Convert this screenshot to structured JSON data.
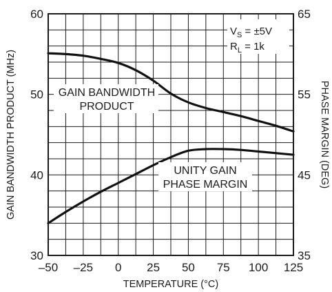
{
  "chart_data": {
    "type": "line",
    "xlabel": "TEMPERATURE (°C)",
    "ylabel_left": "GAIN BANDWIDTH PRODUCT (MHz)",
    "ylabel_right": "PHASE MARGIN (DEG)",
    "xlim": [
      -50,
      125
    ],
    "ylim_left": [
      30,
      60
    ],
    "ylim_right": [
      35,
      65
    ],
    "x_ticks": [
      "–50",
      "–25",
      "0",
      "25",
      "50",
      "75",
      "100",
      "125"
    ],
    "y_left_ticks": [
      "30",
      "40",
      "50",
      "60"
    ],
    "y_right_ticks": [
      "35",
      "45",
      "55",
      "65"
    ],
    "grid": true,
    "conditions": {
      "vs_main": "V",
      "vs_sub": "S",
      "vs_rest": " = ±5V",
      "rl_main": "R",
      "rl_sub": "L",
      "rl_rest": " = 1k"
    },
    "series": [
      {
        "name": "GAIN BANDWIDTH PRODUCT",
        "label_lines": [
          "GAIN BANDWIDTH",
          "PRODUCT"
        ],
        "axis": "left",
        "x": [
          -50,
          -37.5,
          -25,
          -12.5,
          0,
          12.5,
          25,
          37.5,
          50,
          62.5,
          75,
          87.5,
          100,
          112.5,
          125
        ],
        "y": [
          55.1,
          55.0,
          54.8,
          54.4,
          53.9,
          53.0,
          51.7,
          50.1,
          49.0,
          48.3,
          47.8,
          47.3,
          46.7,
          46.1,
          45.4
        ]
      },
      {
        "name": "UNITY GAIN PHASE MARGIN",
        "label_lines": [
          "UNITY GAIN",
          "PHASE MARGIN"
        ],
        "axis": "right",
        "x": [
          -50,
          -37.5,
          -25,
          -12.5,
          0,
          12.5,
          25,
          37.5,
          50,
          62.5,
          75,
          87.5,
          100,
          112.5,
          125
        ],
        "y": [
          39.0,
          40.4,
          41.7,
          42.9,
          44.0,
          45.1,
          46.2,
          47.2,
          48.0,
          48.2,
          48.2,
          48.1,
          47.9,
          47.7,
          47.5
        ]
      }
    ]
  }
}
